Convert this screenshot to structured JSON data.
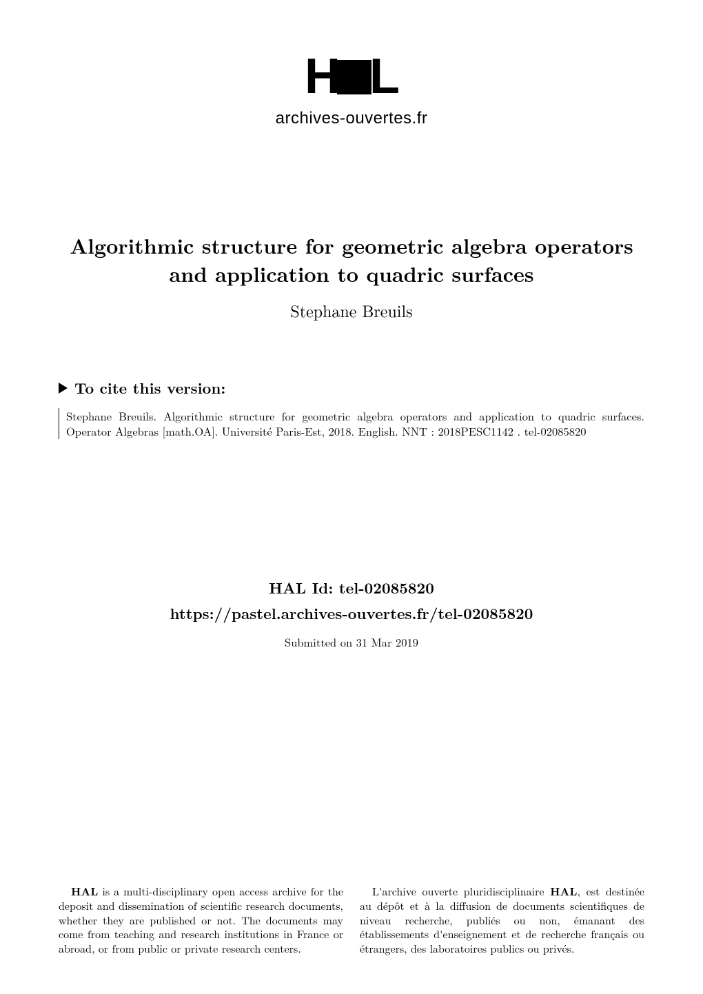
{
  "logo": {
    "text_h": "H",
    "text_l": "L",
    "subtitle": "archives-ouvertes.fr"
  },
  "title": {
    "line1": "Algorithmic structure for geometric algebra operators",
    "line2": "and application to quadric surfaces"
  },
  "author": "Stephane Breuils",
  "cite": {
    "heading": "To cite this version:",
    "text": "Stephane Breuils. Algorithmic structure for geometric algebra operators and application to quadric surfaces. Operator Algebras [math.OA]. Université Paris-Est, 2018. English. NNT : 2018PESC1142 . tel-02085820"
  },
  "hal": {
    "id_label": "HAL Id: tel-02085820",
    "url": "https://pastel.archives-ouvertes.fr/tel-02085820",
    "submitted": "Submitted on 31 Mar 2019"
  },
  "footer": {
    "left_bold": "HAL",
    "left_text": " is a multi-disciplinary open access archive for the deposit and dissemination of scientific research documents, whether they are published or not. The documents may come from teaching and research institutions in France or abroad, or from public or private research centers.",
    "right_prefix": "L'archive ouverte pluridisciplinaire ",
    "right_bold": "HAL",
    "right_text": ", est destinée au dépôt et à la diffusion de documents scientifiques de niveau recherche, publiés ou non, émanant des établissements d'enseignement et de recherche français ou étrangers, des laboratoires publics ou privés."
  },
  "colors": {
    "background": "#ffffff",
    "text": "#000000"
  }
}
